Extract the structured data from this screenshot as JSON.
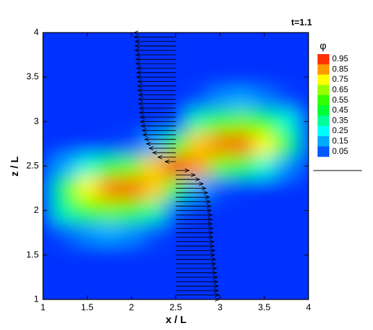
{
  "chart_data": {
    "type": "contour",
    "annotation": "t=1.1",
    "xlabel": "x / L",
    "ylabel": "z / L",
    "xlim": [
      1,
      4
    ],
    "ylim": [
      1,
      4
    ],
    "xticks": [
      1,
      1.5,
      2,
      2.5,
      3,
      3.5,
      4
    ],
    "yticks": [
      1,
      1.5,
      2,
      2.5,
      3,
      3.5,
      4
    ],
    "clim": [
      0,
      1
    ],
    "colormap": [
      "#0030ff",
      "#00ffff",
      "#00ff00",
      "#ffff00",
      "#ff0000"
    ],
    "colorbar": {
      "title": "φ",
      "levels": [
        0.95,
        0.85,
        0.75,
        0.65,
        0.55,
        0.45,
        0.35,
        0.25,
        0.15,
        0.05
      ]
    },
    "field": {
      "x": [
        1,
        1.25,
        1.5,
        1.75,
        2,
        2.25,
        2.5,
        2.75,
        3,
        3.25,
        3.5,
        3.75,
        4
      ],
      "z": [
        1,
        1.25,
        1.5,
        1.75,
        2,
        2.25,
        2.5,
        2.75,
        3,
        3.25,
        3.5,
        3.75,
        4
      ],
      "values": [
        [
          0,
          0,
          0,
          0,
          0,
          0,
          0,
          0,
          0,
          0,
          0,
          0,
          0
        ],
        [
          0,
          0,
          0,
          0,
          0,
          0,
          0,
          0,
          0,
          0,
          0,
          0,
          0
        ],
        [
          0,
          0,
          0,
          0,
          0,
          0,
          0,
          0,
          0,
          0,
          0,
          0,
          0
        ],
        [
          0,
          0.05,
          0.12,
          0.15,
          0.12,
          0.04,
          0,
          0,
          0,
          0,
          0,
          0,
          0
        ],
        [
          0.02,
          0.35,
          0.55,
          0.6,
          0.55,
          0.35,
          0.05,
          0,
          0,
          0,
          0,
          0,
          0
        ],
        [
          0.05,
          0.45,
          0.75,
          0.88,
          0.9,
          0.8,
          0.45,
          0.15,
          0.03,
          0.01,
          0,
          0,
          0
        ],
        [
          0.02,
          0.15,
          0.3,
          0.45,
          0.6,
          0.8,
          0.97,
          0.85,
          0.6,
          0.45,
          0.3,
          0.12,
          0.01
        ],
        [
          0,
          0,
          0,
          0.01,
          0.03,
          0.15,
          0.5,
          0.8,
          0.88,
          0.9,
          0.75,
          0.45,
          0.05
        ],
        [
          0,
          0,
          0,
          0,
          0,
          0,
          0.03,
          0.35,
          0.55,
          0.6,
          0.5,
          0.3,
          0.02
        ],
        [
          0,
          0,
          0,
          0,
          0,
          0,
          0,
          0.03,
          0.12,
          0.15,
          0.1,
          0.03,
          0
        ],
        [
          0,
          0,
          0,
          0,
          0,
          0,
          0,
          0,
          0,
          0,
          0,
          0,
          0
        ],
        [
          0,
          0,
          0,
          0,
          0,
          0,
          0,
          0,
          0,
          0,
          0,
          0,
          0
        ],
        [
          0,
          0,
          0,
          0,
          0,
          0,
          0,
          0,
          0,
          0,
          0,
          0,
          0
        ]
      ]
    },
    "vectors": {
      "x0": 2.5,
      "color": "#000000",
      "z": [
        1,
        1.05,
        1.1,
        1.15,
        1.2,
        1.25,
        1.3,
        1.35,
        1.4,
        1.45,
        1.5,
        1.55,
        1.6,
        1.65,
        1.7,
        1.75,
        1.8,
        1.85,
        1.9,
        1.95,
        2,
        2.05,
        2.1,
        2.15,
        2.2,
        2.25,
        2.3,
        2.35,
        2.4,
        2.45,
        2.5,
        2.55,
        2.6,
        2.65,
        2.7,
        2.75,
        2.8,
        2.85,
        2.9,
        2.95,
        3,
        3.05,
        3.1,
        3.15,
        3.2,
        3.25,
        3.3,
        3.35,
        3.4,
        3.45,
        3.5,
        3.55,
        3.6,
        3.65,
        3.7,
        3.75,
        3.8,
        3.85,
        3.9,
        3.95,
        4
      ],
      "u": [
        0.49,
        0.49,
        0.48,
        0.48,
        0.47,
        0.47,
        0.46,
        0.46,
        0.45,
        0.45,
        0.44,
        0.44,
        0.43,
        0.43,
        0.42,
        0.42,
        0.42,
        0.41,
        0.41,
        0.41,
        0.4,
        0.4,
        0.39,
        0.38,
        0.36,
        0.34,
        0.31,
        0.27,
        0.22,
        0.15,
        0,
        -0.12,
        -0.2,
        -0.26,
        -0.3,
        -0.33,
        -0.35,
        -0.37,
        -0.38,
        -0.39,
        -0.4,
        -0.4,
        -0.41,
        -0.41,
        -0.42,
        -0.42,
        -0.42,
        -0.43,
        -0.43,
        -0.43,
        -0.44,
        -0.44,
        -0.44,
        -0.45,
        -0.45,
        -0.45,
        -0.46,
        -0.46,
        -0.46,
        -0.47,
        -0.47
      ]
    }
  }
}
